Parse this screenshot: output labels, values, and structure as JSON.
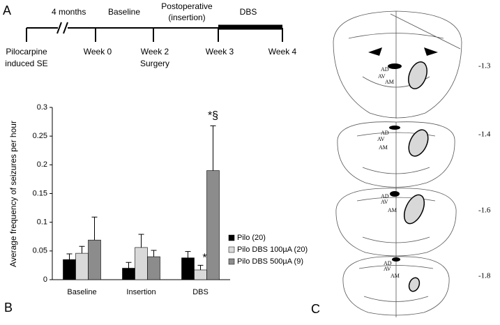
{
  "panel_a": {
    "label": "A",
    "period": "4 months",
    "baseline": "Baseline",
    "postoperative": [
      "Postoperative",
      "(insertion)"
    ],
    "dbs": "DBS",
    "start": [
      "Pilocarpine",
      "induced SE"
    ],
    "week0": "Week 0",
    "week2": [
      "Week 2",
      "Surgery"
    ],
    "week3": "Week 3",
    "week4": "Week 4"
  },
  "chart_data": {
    "type": "bar",
    "label": "B",
    "ylabel": "Average frequency of seizures per hour",
    "categories": [
      "Baseline",
      "Insertion",
      "DBS"
    ],
    "series": [
      {
        "name": "Pilo (20)",
        "color": "#000000",
        "values": [
          0.035,
          0.02,
          0.038
        ],
        "errors": [
          0.01,
          0.01,
          0.011
        ]
      },
      {
        "name": "Pilo DBS 100µA (20)",
        "color": "#d9d9d9",
        "values": [
          0.046,
          0.056,
          0.017
        ],
        "errors": [
          0.012,
          0.023,
          0.008
        ]
      },
      {
        "name": "Pilo DBS 500µA (9)",
        "color": "#8c8c8c",
        "values": [
          0.069,
          0.04,
          0.19
        ],
        "errors": [
          0.04,
          0.011,
          0.078
        ]
      }
    ],
    "ylim": [
      0,
      0.3
    ],
    "yticks": [
      0,
      0.05,
      0.1,
      0.15,
      0.2,
      0.25,
      0.3
    ],
    "annotations": [
      "*",
      "*§"
    ]
  },
  "panel_c": {
    "label": "C",
    "regions": [
      "AD",
      "AV",
      "AM"
    ],
    "levels": [
      "-1.3",
      "-1.4",
      "-1.6",
      "-1.8"
    ]
  }
}
